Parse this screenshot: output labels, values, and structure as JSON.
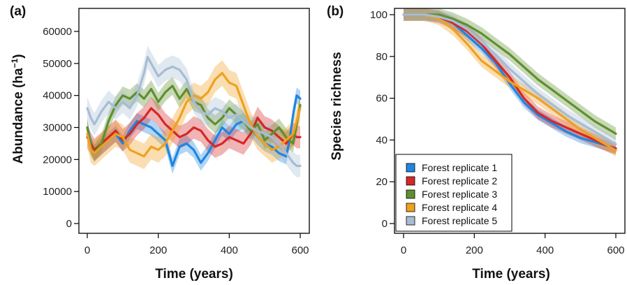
{
  "chart_data": [
    {
      "type": "line",
      "panel_label": "(a)",
      "xlabel": "Time (years)",
      "ylabel_main": "Abundance (ha",
      "ylabel_sup": "−1",
      "ylabel_close": ")",
      "xlim": [
        0,
        600
      ],
      "ylim": [
        0,
        60000
      ],
      "xticks": [
        0,
        200,
        400,
        600
      ],
      "xtick_labels": [
        "0",
        "200",
        "400",
        "600"
      ],
      "yticks": [
        0,
        10000,
        20000,
        30000,
        40000,
        50000,
        60000
      ],
      "ytick_labels": [
        "0",
        "10000",
        "20000",
        "30000",
        "40000",
        "50000",
        "60000"
      ],
      "grid": false,
      "band": "shaded variability envelope around each series",
      "series": [
        {
          "name": "Forest replicate 1",
          "color": "#1f86e0",
          "x": [
            0,
            10,
            20,
            40,
            60,
            80,
            100,
            120,
            140,
            160,
            180,
            200,
            220,
            230,
            240,
            250,
            260,
            280,
            300,
            320,
            340,
            360,
            380,
            400,
            420,
            440,
            460,
            480,
            500,
            520,
            540,
            560,
            570,
            580,
            590,
            600
          ],
          "y": [
            30000,
            25000,
            22000,
            24000,
            26000,
            28000,
            25000,
            29000,
            32000,
            31000,
            30000,
            28000,
            26000,
            22000,
            18000,
            21000,
            24000,
            25000,
            23000,
            19000,
            22000,
            26000,
            30000,
            28000,
            31000,
            32000,
            30000,
            27000,
            25000,
            24000,
            22000,
            21000,
            26000,
            34000,
            40000,
            39000
          ],
          "spread": 2500
        },
        {
          "name": "Forest replicate 2",
          "color": "#d42828",
          "x": [
            0,
            20,
            40,
            60,
            80,
            100,
            120,
            140,
            160,
            180,
            200,
            220,
            240,
            260,
            280,
            300,
            320,
            340,
            360,
            380,
            400,
            420,
            440,
            460,
            480,
            500,
            520,
            540,
            560,
            580,
            590,
            600
          ],
          "y": [
            27000,
            23000,
            25000,
            27000,
            29000,
            26000,
            28000,
            31000,
            33000,
            36000,
            34000,
            31000,
            29000,
            27000,
            28000,
            30000,
            29000,
            26000,
            24000,
            25000,
            27000,
            26000,
            25000,
            28000,
            33000,
            30000,
            29000,
            27000,
            25000,
            28000,
            27000,
            27000
          ],
          "spread": 3500
        },
        {
          "name": "Forest replicate 3",
          "color": "#5f8f2e",
          "x": [
            0,
            10,
            20,
            40,
            60,
            80,
            100,
            120,
            140,
            160,
            180,
            200,
            220,
            240,
            260,
            280,
            300,
            320,
            340,
            360,
            380,
            400,
            420,
            440,
            460,
            480,
            500,
            520,
            540,
            560,
            580,
            600
          ],
          "y": [
            30000,
            24000,
            22000,
            25000,
            32000,
            37000,
            40000,
            39000,
            41000,
            39000,
            42000,
            38000,
            41000,
            43000,
            39000,
            42000,
            38000,
            37000,
            33000,
            31000,
            33000,
            36000,
            34000,
            32000,
            29000,
            31000,
            26000,
            28000,
            30000,
            27000,
            25000,
            37000
          ],
          "spread": 2800
        },
        {
          "name": "Forest replicate 4",
          "color": "#f0a020",
          "x": [
            0,
            10,
            20,
            40,
            60,
            80,
            100,
            120,
            140,
            160,
            180,
            200,
            220,
            240,
            260,
            280,
            300,
            320,
            340,
            360,
            380,
            400,
            420,
            440,
            460,
            480,
            500,
            520,
            540,
            560,
            580,
            600
          ],
          "y": [
            28000,
            23000,
            22000,
            24000,
            26000,
            28000,
            27000,
            23000,
            22000,
            21000,
            24000,
            23000,
            25000,
            29000,
            33000,
            38000,
            40000,
            39000,
            41000,
            45000,
            47000,
            44000,
            43000,
            37000,
            31000,
            27000,
            25000,
            23000,
            24000,
            26000,
            28000,
            36000
          ],
          "spread": 4000
        },
        {
          "name": "Forest replicate 5",
          "color": "#a7bdd4",
          "x": [
            0,
            10,
            20,
            40,
            60,
            80,
            100,
            120,
            140,
            160,
            170,
            180,
            200,
            220,
            240,
            260,
            280,
            300,
            320,
            340,
            360,
            380,
            400,
            420,
            440,
            460,
            480,
            500,
            520,
            540,
            560,
            580,
            590,
            600
          ],
          "y": [
            36000,
            33000,
            31000,
            35000,
            38000,
            36000,
            38000,
            36000,
            40000,
            47000,
            52000,
            50000,
            46000,
            48000,
            49000,
            48000,
            45000,
            38000,
            35000,
            34000,
            36000,
            35000,
            33000,
            34000,
            32000,
            30000,
            29000,
            28000,
            27000,
            25000,
            22000,
            19000,
            18000,
            18000
          ],
          "spread": 3500
        }
      ]
    },
    {
      "type": "line",
      "panel_label": "(b)",
      "xlabel": "Time (years)",
      "ylabel": "Species richness",
      "xlim": [
        0,
        600
      ],
      "ylim": [
        0,
        100
      ],
      "xticks": [
        0,
        200,
        400,
        600
      ],
      "xtick_labels": [
        "0",
        "200",
        "400",
        "600"
      ],
      "yticks": [
        0,
        20,
        40,
        60,
        80,
        100
      ],
      "ytick_labels": [
        "0",
        "20",
        "40",
        "60",
        "80",
        "100"
      ],
      "grid": false,
      "legend_position": "bottom-left",
      "series": [
        {
          "name": "Forest replicate 1",
          "color": "#1f86e0",
          "x": [
            0,
            60,
            100,
            140,
            180,
            220,
            260,
            300,
            340,
            380,
            420,
            460,
            500,
            540,
            580,
            600
          ],
          "y": [
            100,
            100,
            99,
            96,
            90,
            84,
            77,
            67,
            58,
            52,
            48,
            44,
            41,
            39,
            37,
            36
          ],
          "spread": 2.5
        },
        {
          "name": "Forest replicate 2",
          "color": "#d42828",
          "x": [
            0,
            60,
            100,
            140,
            180,
            220,
            260,
            300,
            340,
            380,
            420,
            460,
            500,
            540,
            580,
            600
          ],
          "y": [
            100,
            100,
            99,
            96,
            92,
            86,
            78,
            70,
            60,
            53,
            49,
            46,
            43,
            40,
            37,
            36
          ],
          "spread": 3
        },
        {
          "name": "Forest replicate 3",
          "color": "#5f8f2e",
          "x": [
            0,
            60,
            100,
            140,
            180,
            220,
            260,
            300,
            340,
            380,
            420,
            460,
            500,
            540,
            580,
            600
          ],
          "y": [
            100,
            100,
            100,
            98,
            95,
            91,
            86,
            81,
            75,
            69,
            64,
            59,
            54,
            49,
            45,
            43
          ],
          "spread": 3
        },
        {
          "name": "Forest replicate 4",
          "color": "#f0a020",
          "x": [
            0,
            60,
            100,
            140,
            180,
            220,
            260,
            300,
            340,
            380,
            420,
            460,
            500,
            540,
            580,
            600
          ],
          "y": [
            100,
            100,
            98,
            93,
            86,
            78,
            73,
            68,
            64,
            60,
            55,
            50,
            45,
            41,
            37,
            35
          ],
          "spread": 3
        },
        {
          "name": "Forest replicate 5",
          "color": "#a7bdd4",
          "x": [
            0,
            60,
            100,
            140,
            180,
            220,
            260,
            300,
            340,
            380,
            420,
            460,
            500,
            540,
            580,
            600
          ],
          "y": [
            100,
            100,
            99,
            97,
            93,
            87,
            81,
            74,
            68,
            62,
            57,
            52,
            48,
            44,
            40,
            38
          ],
          "spread": 3
        }
      ]
    }
  ]
}
